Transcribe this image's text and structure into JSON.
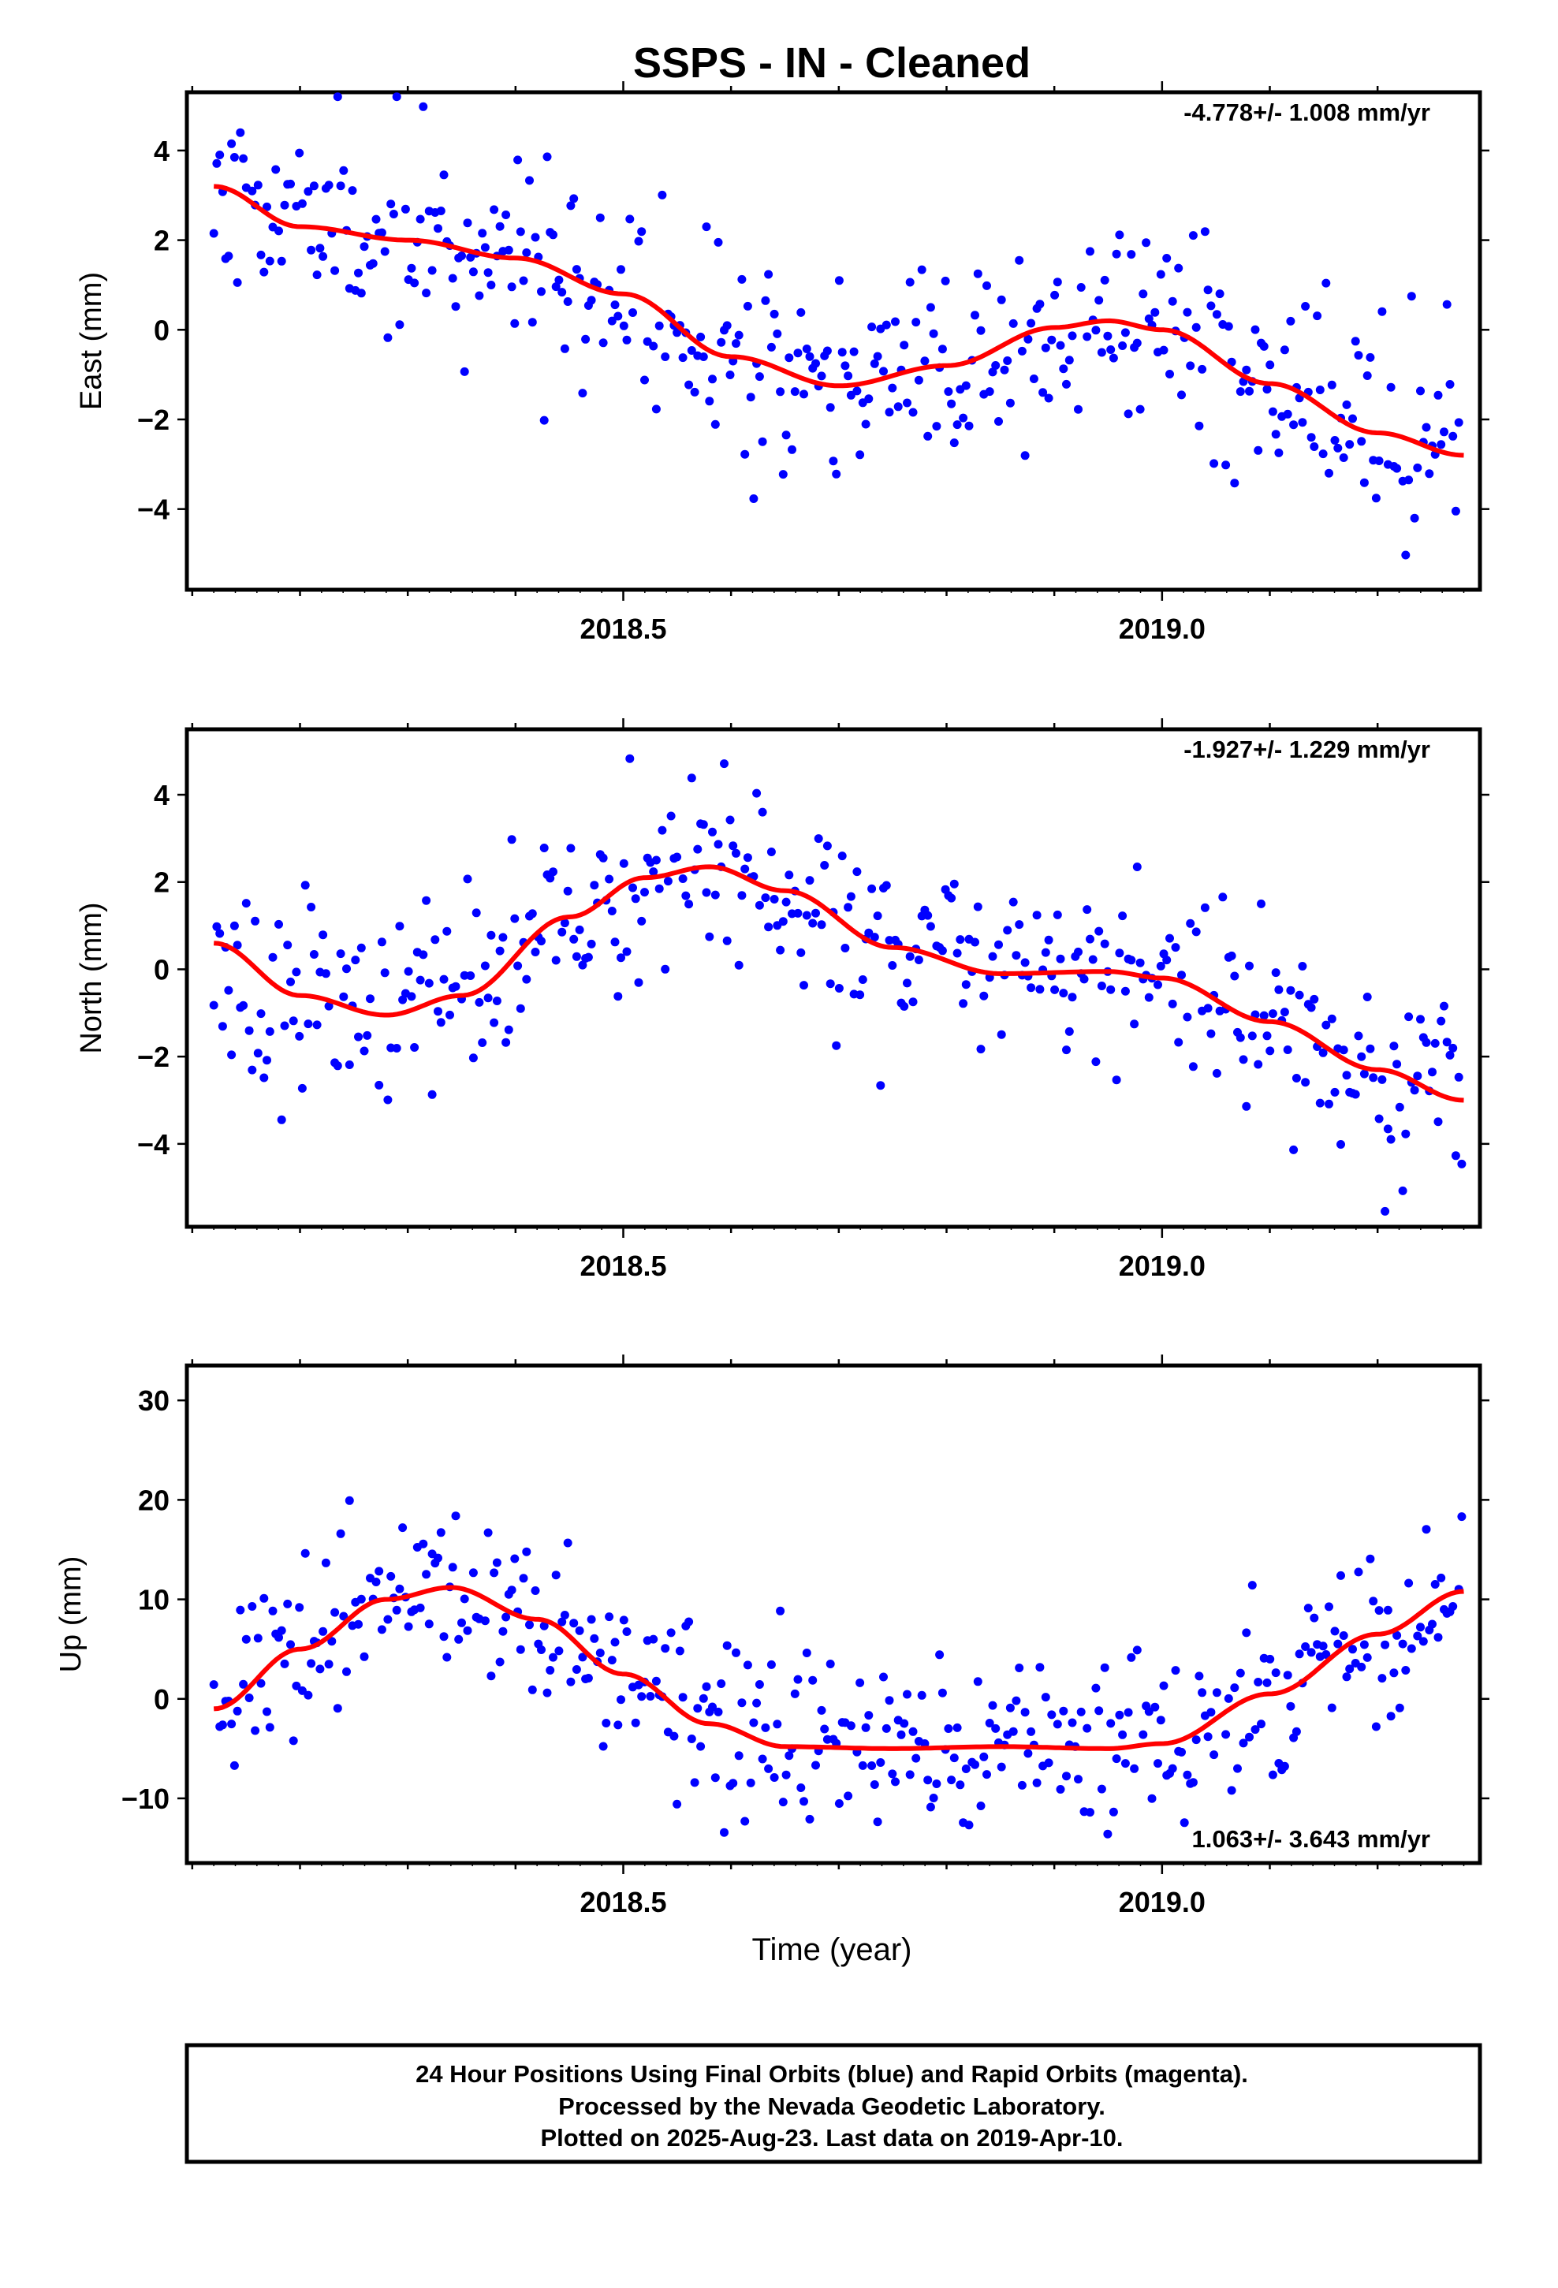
{
  "figure": {
    "title": "SSPS  - IN - Cleaned",
    "xlabel": "Time (year)",
    "footer_lines": [
      "24 Hour Positions Using Final Orbits (blue) and Rapid Orbits (magenta).",
      "Processed by the Nevada Geodetic Laboratory.",
      "Plotted on 2025-Aug-23. Last data on 2019-Apr-10."
    ]
  },
  "colors": {
    "points": "#0000ff",
    "fit": "#ff0000",
    "frame": "#000000"
  },
  "chart_data": [
    {
      "type": "scatter",
      "component": "east",
      "ylabel": "East (mm)",
      "rate_label": "-4.778+/- 1.008 mm/yr",
      "xlim": [
        2018.095,
        2019.295
      ],
      "ylim": [
        -5.8,
        5.3
      ],
      "xticks": [
        2018.5,
        2019.0
      ],
      "xtick_labels": [
        "2018.5",
        "2019.0"
      ],
      "yticks": [
        4,
        2,
        0,
        -2,
        -4
      ],
      "ytick_labels": [
        "4",
        "2",
        "0",
        "−2",
        "−4"
      ],
      "fit_x": [
        2018.12,
        2018.2,
        2018.3,
        2018.4,
        2018.5,
        2018.6,
        2018.7,
        2018.8,
        2018.9,
        2018.95,
        2019.0,
        2019.1,
        2019.2,
        2019.28
      ],
      "fit_y": [
        3.2,
        2.3,
        2.0,
        1.6,
        0.8,
        -0.6,
        -1.25,
        -0.8,
        0.05,
        0.2,
        0.0,
        -1.2,
        -2.3,
        -2.8
      ],
      "noise": 1.1,
      "seed": 11
    },
    {
      "type": "scatter",
      "component": "north",
      "ylabel": "North (mm)",
      "rate_label": "-1.927+/- 1.229 mm/yr",
      "xlim": [
        2018.095,
        2019.295
      ],
      "ylim": [
        -5.9,
        5.5
      ],
      "xticks": [
        2018.5,
        2019.0
      ],
      "xtick_labels": [
        "2018.5",
        "2019.0"
      ],
      "yticks": [
        4,
        2,
        0,
        -2,
        -4
      ],
      "ytick_labels": [
        "4",
        "2",
        "0",
        "−2",
        "−4"
      ],
      "fit_x": [
        2018.12,
        2018.2,
        2018.28,
        2018.35,
        2018.45,
        2018.52,
        2018.58,
        2018.65,
        2018.75,
        2018.85,
        2018.95,
        2019.0,
        2019.1,
        2019.2,
        2019.28
      ],
      "fit_y": [
        0.6,
        -0.6,
        -1.05,
        -0.6,
        1.2,
        2.1,
        2.35,
        1.8,
        0.5,
        -0.1,
        -0.05,
        -0.2,
        -1.2,
        -2.3,
        -3.0
      ],
      "noise": 1.1,
      "seed": 23
    },
    {
      "type": "scatter",
      "component": "up",
      "ylabel": "Up (mm)",
      "rate_label": "1.063+/- 3.643 mm/yr",
      "xlim": [
        2018.095,
        2019.295
      ],
      "ylim": [
        -16.5,
        33.5
      ],
      "xticks": [
        2018.5,
        2019.0
      ],
      "xtick_labels": [
        "2018.5",
        "2019.0"
      ],
      "yticks": [
        30,
        20,
        10,
        0,
        -10
      ],
      "ytick_labels": [
        "30",
        "20",
        "10",
        "0",
        "−10"
      ],
      "fit_x": [
        2018.12,
        2018.2,
        2018.28,
        2018.34,
        2018.42,
        2018.5,
        2018.58,
        2018.65,
        2018.75,
        2018.85,
        2018.95,
        2019.0,
        2019.1,
        2019.2,
        2019.28
      ],
      "fit_y": [
        -1.0,
        5.0,
        10.0,
        11.2,
        8.0,
        2.5,
        -2.5,
        -4.8,
        -5.0,
        -4.8,
        -5.0,
        -4.5,
        0.5,
        6.5,
        10.8
      ],
      "noise": 4.5,
      "seed": 37
    }
  ]
}
